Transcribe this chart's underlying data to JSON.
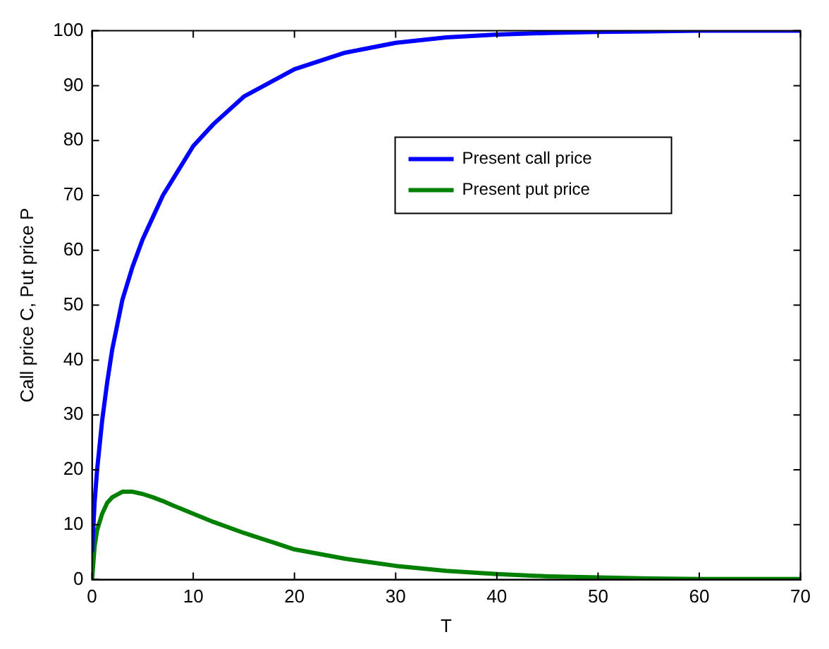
{
  "chart_data": {
    "type": "line",
    "xlabel": "T",
    "ylabel": "Call price C, Put price P",
    "xlim": [
      0,
      70
    ],
    "ylim": [
      0,
      100
    ],
    "xticks": [
      0,
      10,
      20,
      30,
      40,
      50,
      60,
      70
    ],
    "yticks": [
      0,
      10,
      20,
      30,
      40,
      50,
      60,
      70,
      80,
      90,
      100
    ],
    "grid": false,
    "legend": "top right",
    "marker": "none",
    "line_style": "solid",
    "x": [
      0,
      0.25,
      0.5,
      1,
      1.5,
      2,
      3,
      4,
      5,
      6,
      7,
      8,
      10,
      12,
      15,
      18,
      20,
      25,
      30,
      35,
      40,
      45,
      50,
      55,
      60,
      65,
      70
    ],
    "series": [
      {
        "name": "Present call price",
        "color": "#0000ff",
        "values": [
          5,
          14,
          20,
          29,
          36,
          42,
          51,
          57,
          62,
          66,
          70,
          73,
          79,
          83,
          88,
          91,
          93,
          96,
          97.8,
          98.8,
          99.3,
          99.6,
          99.8,
          99.9,
          100,
          100,
          100
        ]
      },
      {
        "name": "Present put price",
        "color": "#008000",
        "values": [
          0,
          6,
          9,
          12,
          14,
          15,
          16,
          16,
          15.6,
          15,
          14.3,
          13.5,
          12,
          10.5,
          8.5,
          6.7,
          5.5,
          3.8,
          2.5,
          1.6,
          1,
          0.6,
          0.4,
          0.2,
          0.1,
          0.1,
          0.1
        ]
      }
    ]
  }
}
